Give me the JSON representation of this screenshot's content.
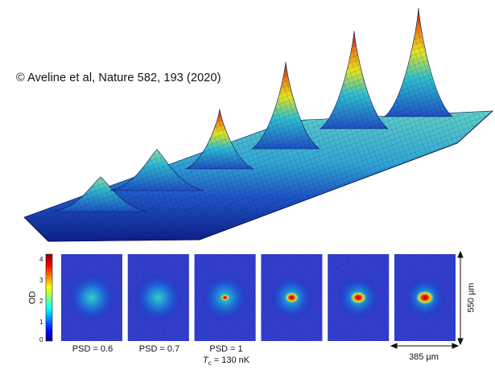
{
  "caption": "© Aveline et al, Nature 582, 193 (2020)",
  "colorbar": {
    "label": "OD",
    "ticks": [
      "4",
      "3",
      "2",
      "1",
      "0"
    ]
  },
  "panels": [
    {
      "psd_label": "PSD = 0.6",
      "peak": 0.32
    },
    {
      "psd_label": "PSD = 0.7",
      "peak": 0.38
    },
    {
      "psd_label": "PSD = 1",
      "peak": 0.55
    },
    {
      "psd_label": "",
      "peak": 0.8
    },
    {
      "psd_label": "",
      "peak": 0.9
    },
    {
      "psd_label": "",
      "peak": 1.0
    }
  ],
  "tc_label": {
    "symbol": "T",
    "subscript": "c",
    "rest": " = 130 nK"
  },
  "scale": {
    "height": "550 µm",
    "width": "385 µm"
  },
  "colors": {
    "low": "#1f2fb8",
    "mid": "#2ec8c8",
    "high_mid": "#e8e020",
    "high": "#c0101a"
  }
}
